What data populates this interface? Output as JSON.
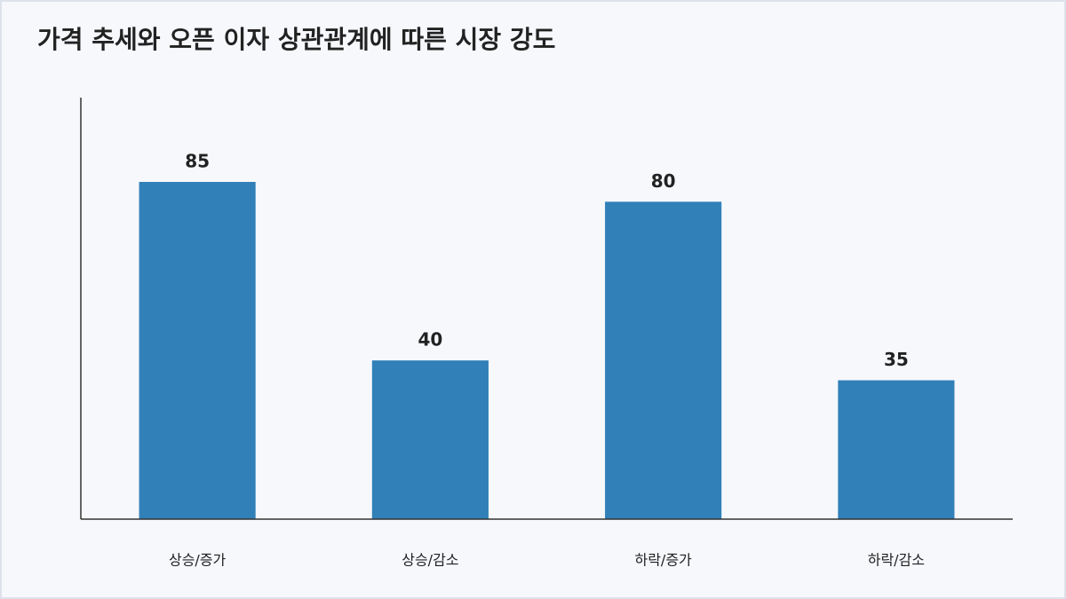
{
  "chart_data": {
    "type": "bar",
    "title": "가격 추세와 오픈 이자 상관관계에 따른 시장 강도",
    "categories": [
      "상승/증가",
      "상승/감소",
      "하락/증가",
      "하락/감소"
    ],
    "values": [
      85,
      40,
      80,
      35
    ],
    "color": "#3180b8",
    "ylim": [
      0,
      106.25
    ],
    "grid": false
  }
}
